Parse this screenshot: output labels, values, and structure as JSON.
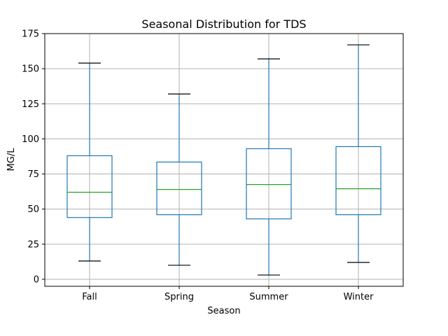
{
  "chart_data": {
    "type": "box",
    "title": "Seasonal Distribution for TDS",
    "xlabel": "Season",
    "ylabel": "MG/L",
    "ylim": [
      -5,
      175
    ],
    "yticks": [
      0,
      25,
      50,
      75,
      100,
      125,
      150,
      175
    ],
    "grid": true,
    "categories": [
      "Fall",
      "Spring",
      "Summer",
      "Winter"
    ],
    "boxes": [
      {
        "category": "Fall",
        "whisker_low": 13,
        "q1": 44,
        "median": 62,
        "q3": 88,
        "whisker_high": 154
      },
      {
        "category": "Spring",
        "whisker_low": 10,
        "q1": 46,
        "median": 64,
        "q3": 83.5,
        "whisker_high": 132
      },
      {
        "category": "Summer",
        "whisker_low": 3,
        "q1": 43,
        "median": 67.5,
        "q3": 93,
        "whisker_high": 157
      },
      {
        "category": "Winter",
        "whisker_low": 12,
        "q1": 46,
        "median": 64.5,
        "q3": 94.5,
        "whisker_high": 167
      }
    ],
    "colors": {
      "box": "#1f77b4",
      "median": "#2ca02c",
      "cap": "#000000",
      "grid": "#b0b0b0"
    }
  }
}
